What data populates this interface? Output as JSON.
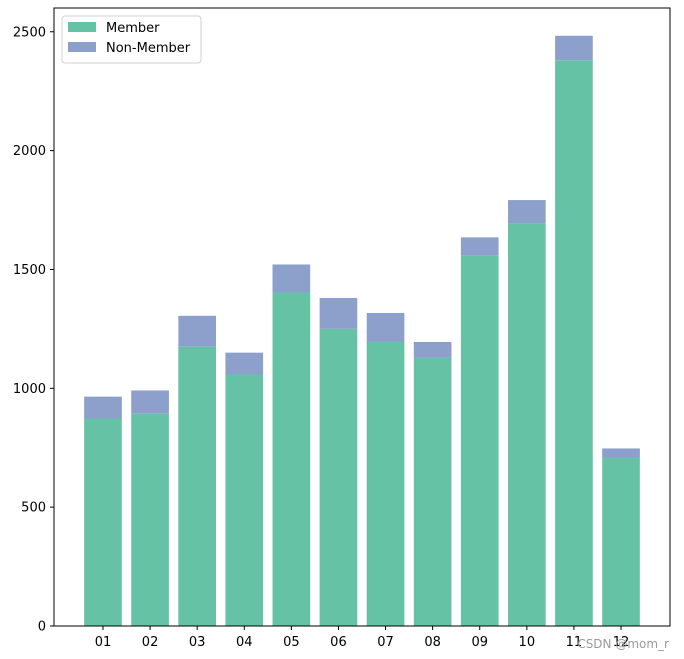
{
  "chart_data": {
    "type": "bar",
    "stacked": true,
    "categories": [
      "01",
      "02",
      "03",
      "04",
      "05",
      "06",
      "07",
      "08",
      "09",
      "10",
      "11",
      "12"
    ],
    "series": [
      {
        "name": "Member",
        "color": "#66c2a5",
        "values": [
          873,
          893,
          1175,
          1058,
          1403,
          1250,
          1195,
          1128,
          1558,
          1695,
          2380,
          707
        ]
      },
      {
        "name": "Non-Member",
        "color": "#8da0cb",
        "values": [
          92,
          98,
          130,
          92,
          118,
          130,
          122,
          67,
          77,
          97,
          103,
          40
        ]
      }
    ],
    "title": "",
    "xlabel": "",
    "ylabel": "",
    "ylim": [
      0,
      2600
    ],
    "yticks": [
      0,
      500,
      1000,
      1500,
      2000,
      2500
    ],
    "legend_position": "top-left",
    "grid": false
  },
  "watermark": "CSDN @mom_r"
}
